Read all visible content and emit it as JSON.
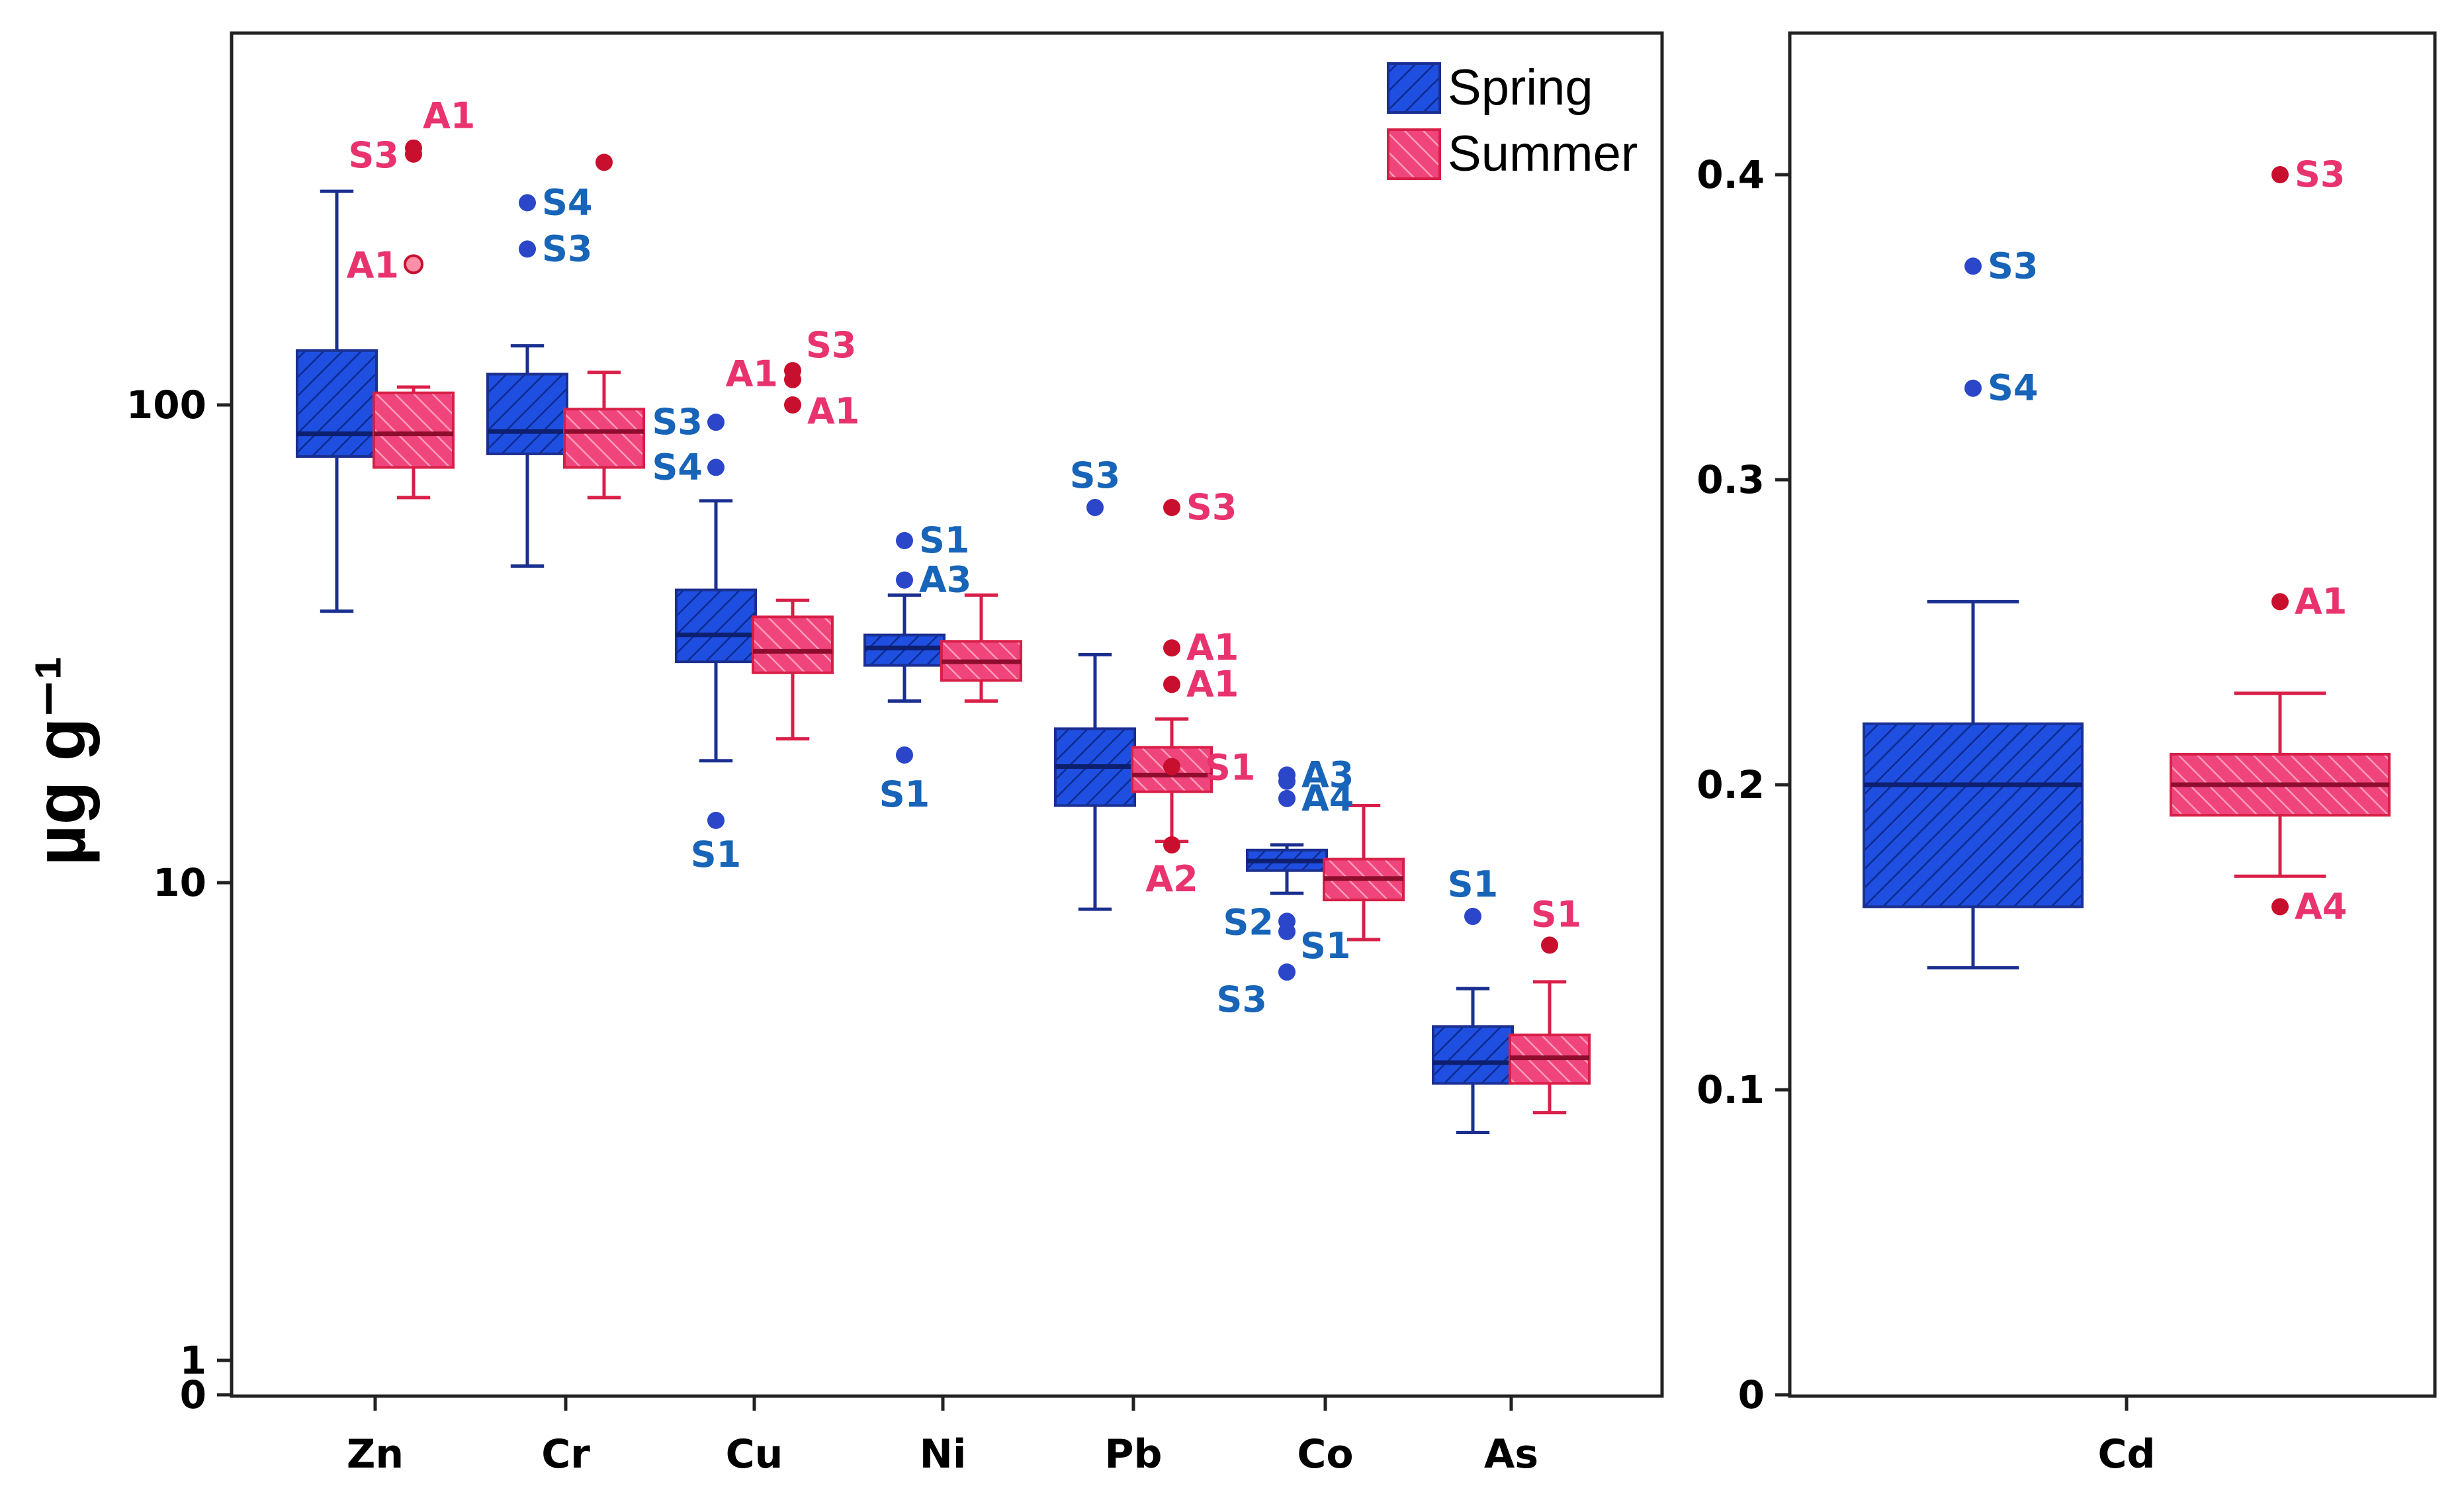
{
  "chart_data": [
    {
      "type": "box",
      "panel": "left",
      "y_scale": "log",
      "ylabel": "µg g⁻¹",
      "y_ticks": [
        "100",
        "10",
        "1",
        "0"
      ],
      "categories": [
        "Zn",
        "Cr",
        "Cu",
        "Ni",
        "Pb",
        "Co",
        "As"
      ],
      "legend": {
        "placement": "top-right",
        "entries": [
          "Spring",
          "Summer"
        ]
      },
      "series": [
        {
          "name": "Spring",
          "color": "#1a3fd6",
          "boxes": [
            {
              "category": "Zn",
              "whisker_low": 37,
              "q1": 78,
              "median": 87,
              "q3": 130,
              "whisker_high": 280
            },
            {
              "category": "Cr",
              "whisker_low": 46,
              "q1": 79,
              "median": 88,
              "q3": 116,
              "whisker_high": 133
            },
            {
              "category": "Cu",
              "whisker_low": 18,
              "q1": 29,
              "median": 33,
              "q3": 41,
              "whisker_high": 63
            },
            {
              "category": "Ni",
              "whisker_low": 24,
              "q1": 28.5,
              "median": 31,
              "q3": 33,
              "whisker_high": 40
            },
            {
              "category": "Pb",
              "whisker_low": 8.8,
              "q1": 14.5,
              "median": 17.5,
              "q3": 21,
              "whisker_high": 30
            },
            {
              "category": "Co",
              "whisker_low": 9.5,
              "q1": 10.6,
              "median": 11.1,
              "q3": 11.7,
              "whisker_high": 12
            },
            {
              "category": "As",
              "whisker_low": 3.0,
              "q1": 3.8,
              "median": 4.2,
              "q3": 5.0,
              "whisker_high": 6.0
            }
          ],
          "outliers": [
            {
              "category": "Cr",
              "value": 265,
              "label": "S4"
            },
            {
              "category": "Cr",
              "value": 212,
              "label": "S3"
            },
            {
              "category": "Cu",
              "value": 92,
              "label": "S3"
            },
            {
              "category": "Cu",
              "value": 74,
              "label": "S4"
            },
            {
              "category": "Cu",
              "value": 13.5,
              "label": "S1"
            },
            {
              "category": "Ni",
              "value": 52,
              "label": "S1"
            },
            {
              "category": "Ni",
              "value": 43,
              "label": "A3"
            },
            {
              "category": "Ni",
              "value": 18.5,
              "label": "S1"
            },
            {
              "category": "Pb",
              "value": 61,
              "label": "S3"
            },
            {
              "category": "Co",
              "value": 16.8,
              "label": "A3"
            },
            {
              "category": "Co",
              "value": 16.3,
              "label": ""
            },
            {
              "category": "Co",
              "value": 15.0,
              "label": "A4"
            },
            {
              "category": "Co",
              "value": 8.3,
              "label": "S2"
            },
            {
              "category": "Co",
              "value": 7.9,
              "label": "S1"
            },
            {
              "category": "Co",
              "value": 6.5,
              "label": "S3"
            },
            {
              "category": "As",
              "value": 8.5,
              "label": "S1"
            }
          ]
        },
        {
          "name": "Summer",
          "color": "#e8336e",
          "boxes": [
            {
              "category": "Zn",
              "whisker_low": 64,
              "q1": 74,
              "median": 87,
              "q3": 106,
              "whisker_high": 109
            },
            {
              "category": "Cr",
              "whisker_low": 64,
              "q1": 74,
              "median": 88,
              "q3": 98,
              "whisker_high": 117
            },
            {
              "category": "Cu",
              "whisker_low": 20,
              "q1": 27.5,
              "median": 30.5,
              "q3": 36,
              "whisker_high": 39
            },
            {
              "category": "Ni",
              "whisker_low": 24,
              "q1": 26.5,
              "median": 29,
              "q3": 32,
              "whisker_high": 40
            },
            {
              "category": "Pb",
              "whisker_low": 12.2,
              "q1": 15.5,
              "median": 16.8,
              "q3": 19.2,
              "whisker_high": 22
            },
            {
              "category": "Co",
              "whisker_low": 7.6,
              "q1": 9.2,
              "median": 10.2,
              "q3": 11.2,
              "whisker_high": 14.5
            },
            {
              "category": "As",
              "whisker_low": 3.3,
              "q1": 3.8,
              "median": 4.3,
              "q3": 4.8,
              "whisker_high": 6.2
            }
          ],
          "outliers": [
            {
              "category": "Zn",
              "value": 345,
              "label": "A1"
            },
            {
              "category": "Zn",
              "value": 335,
              "label": "S3"
            },
            {
              "category": "Zn",
              "value": 197,
              "label": "A1"
            },
            {
              "category": "Cr",
              "value": 322,
              "label": ""
            },
            {
              "category": "Cu",
              "value": 118,
              "label": "S3"
            },
            {
              "category": "Cu",
              "value": 113,
              "label": "A1"
            },
            {
              "category": "Cu",
              "value": 100,
              "label": "A1"
            },
            {
              "category": "Pb",
              "value": 61,
              "label": "S3"
            },
            {
              "category": "Pb",
              "value": 31,
              "label": "A1"
            },
            {
              "category": "Pb",
              "value": 26,
              "label": "A1"
            },
            {
              "category": "Pb",
              "value": 17.5,
              "label": "S1"
            },
            {
              "category": "Pb",
              "value": 12.0,
              "label": "A2"
            },
            {
              "category": "As",
              "value": 7.4,
              "label": "S1"
            }
          ]
        }
      ]
    },
    {
      "type": "box",
      "panel": "right",
      "y_scale": "linear",
      "ylim": [
        0,
        0.45
      ],
      "y_ticks": [
        "0.4",
        "0.3",
        "0.2",
        "0.1",
        "0"
      ],
      "categories": [
        "Cd"
      ],
      "series": [
        {
          "name": "Spring",
          "color": "#1a3fd6",
          "boxes": [
            {
              "category": "Cd",
              "whisker_low": 0.14,
              "q1": 0.16,
              "median": 0.2,
              "q3": 0.22,
              "whisker_high": 0.26
            }
          ],
          "outliers": [
            {
              "category": "Cd",
              "value": 0.37,
              "label": "S3"
            },
            {
              "category": "Cd",
              "value": 0.33,
              "label": "S4"
            }
          ]
        },
        {
          "name": "Summer",
          "color": "#e8336e",
          "boxes": [
            {
              "category": "Cd",
              "whisker_low": 0.17,
              "q1": 0.19,
              "median": 0.2,
              "q3": 0.21,
              "whisker_high": 0.23
            }
          ],
          "outliers": [
            {
              "category": "Cd",
              "value": 0.4,
              "label": "S3"
            },
            {
              "category": "Cd",
              "value": 0.26,
              "label": "A1"
            },
            {
              "category": "Cd",
              "value": 0.16,
              "label": "A4"
            }
          ]
        }
      ]
    }
  ]
}
